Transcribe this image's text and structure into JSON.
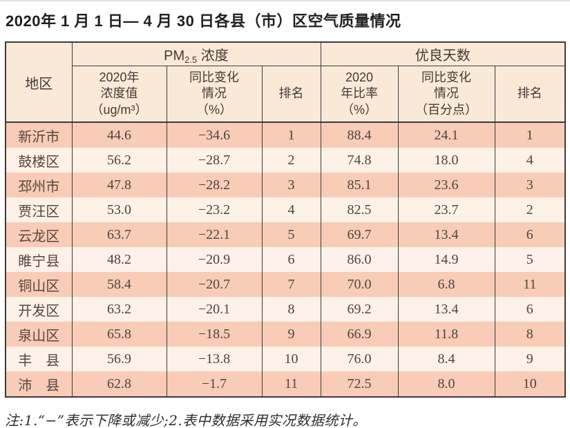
{
  "page": {
    "title": "2020年 1 月 1 日— 4 月 30 日各县（市）区空气质量情况",
    "note": "注:1.“−”表示下降或减少;2.表中数据采用实况数据统计。"
  },
  "colors": {
    "header_bg": "#fbe9d8",
    "row_odd_bg": "#f8ccb6",
    "row_even_bg": "#fdf1e8",
    "border": "#3a3a3a",
    "body_text": "#4c4540"
  },
  "table": {
    "header": {
      "region": "地区",
      "pm_group_base": "PM",
      "pm_group_sub": "2.5",
      "pm_group_rest": " 浓度",
      "good_group": "优良天数",
      "pm_value": "2020年\n浓度值\n（ug/m³）",
      "pm_change": "同比变化\n情况\n（%）",
      "pm_rank": "排名",
      "good_rate": "2020\n年比率\n（%）",
      "good_change": "同比变化\n情况\n（百分点）",
      "good_rank": "排名"
    },
    "rows": [
      {
        "region": "新沂市",
        "pm_value": "44.6",
        "pm_change": "−34.6",
        "pm_rank": "1",
        "good_rate": "88.4",
        "good_change": "24.1",
        "good_rank": "1"
      },
      {
        "region": "鼓楼区",
        "pm_value": "56.2",
        "pm_change": "−28.7",
        "pm_rank": "2",
        "good_rate": "74.8",
        "good_change": "18.0",
        "good_rank": "4"
      },
      {
        "region": "邳州市",
        "pm_value": "47.8",
        "pm_change": "−28.2",
        "pm_rank": "3",
        "good_rate": "85.1",
        "good_change": "23.6",
        "good_rank": "3"
      },
      {
        "region": "贾汪区",
        "pm_value": "53.0",
        "pm_change": "−23.2",
        "pm_rank": "4",
        "good_rate": "82.5",
        "good_change": "23.7",
        "good_rank": "2"
      },
      {
        "region": "云龙区",
        "pm_value": "63.7",
        "pm_change": "−22.1",
        "pm_rank": "5",
        "good_rate": "69.7",
        "good_change": "13.4",
        "good_rank": "6"
      },
      {
        "region": "睢宁县",
        "pm_value": "48.2",
        "pm_change": "−20.9",
        "pm_rank": "6",
        "good_rate": "86.0",
        "good_change": "14.9",
        "good_rank": "5"
      },
      {
        "region": "铜山区",
        "pm_value": "58.4",
        "pm_change": "−20.7",
        "pm_rank": "7",
        "good_rate": "70.0",
        "good_change": "6.8",
        "good_rank": "11"
      },
      {
        "region": "开发区",
        "pm_value": "63.2",
        "pm_change": "−20.1",
        "pm_rank": "8",
        "good_rate": "69.2",
        "good_change": "13.4",
        "good_rank": "6"
      },
      {
        "region": "泉山区",
        "pm_value": "65.8",
        "pm_change": "−18.5",
        "pm_rank": "9",
        "good_rate": "66.9",
        "good_change": "11.8",
        "good_rank": "8"
      },
      {
        "region": "丰　县",
        "pm_value": "56.9",
        "pm_change": "−13.8",
        "pm_rank": "10",
        "good_rate": "76.0",
        "good_change": "8.4",
        "good_rank": "9"
      },
      {
        "region": "沛　县",
        "pm_value": "62.8",
        "pm_change": "−1.7",
        "pm_rank": "11",
        "good_rate": "72.5",
        "good_change": "8.0",
        "good_rank": "10"
      }
    ]
  },
  "chart_data": {
    "type": "table",
    "title": "2020年1月1日—4月30日各县（市）区空气质量情况",
    "columns": [
      "地区",
      "PM2.5浓度 2020年浓度值（ug/m³）",
      "PM2.5浓度 同比变化情况（%）",
      "PM2.5浓度 排名",
      "优良天数 2020年比率（%）",
      "优良天数 同比变化情况（百分点）",
      "优良天数 排名"
    ],
    "rows": [
      [
        "新沂市",
        44.6,
        -34.6,
        1,
        88.4,
        24.1,
        1
      ],
      [
        "鼓楼区",
        56.2,
        -28.7,
        2,
        74.8,
        18.0,
        4
      ],
      [
        "邳州市",
        47.8,
        -28.2,
        3,
        85.1,
        23.6,
        3
      ],
      [
        "贾汪区",
        53.0,
        -23.2,
        4,
        82.5,
        23.7,
        2
      ],
      [
        "云龙区",
        63.7,
        -22.1,
        5,
        69.7,
        13.4,
        6
      ],
      [
        "睢宁县",
        48.2,
        -20.9,
        6,
        86.0,
        14.9,
        5
      ],
      [
        "铜山区",
        58.4,
        -20.7,
        7,
        70.0,
        6.8,
        11
      ],
      [
        "开发区",
        63.2,
        -20.1,
        8,
        69.2,
        13.4,
        6
      ],
      [
        "泉山区",
        65.8,
        -18.5,
        9,
        66.9,
        11.8,
        8
      ],
      [
        "丰县",
        56.9,
        -13.8,
        10,
        76.0,
        8.4,
        9
      ],
      [
        "沛县",
        62.8,
        -1.7,
        11,
        72.5,
        8.0,
        10
      ]
    ],
    "note": "注:1.“−”表示下降或减少;2.表中数据采用实况数据统计。"
  }
}
